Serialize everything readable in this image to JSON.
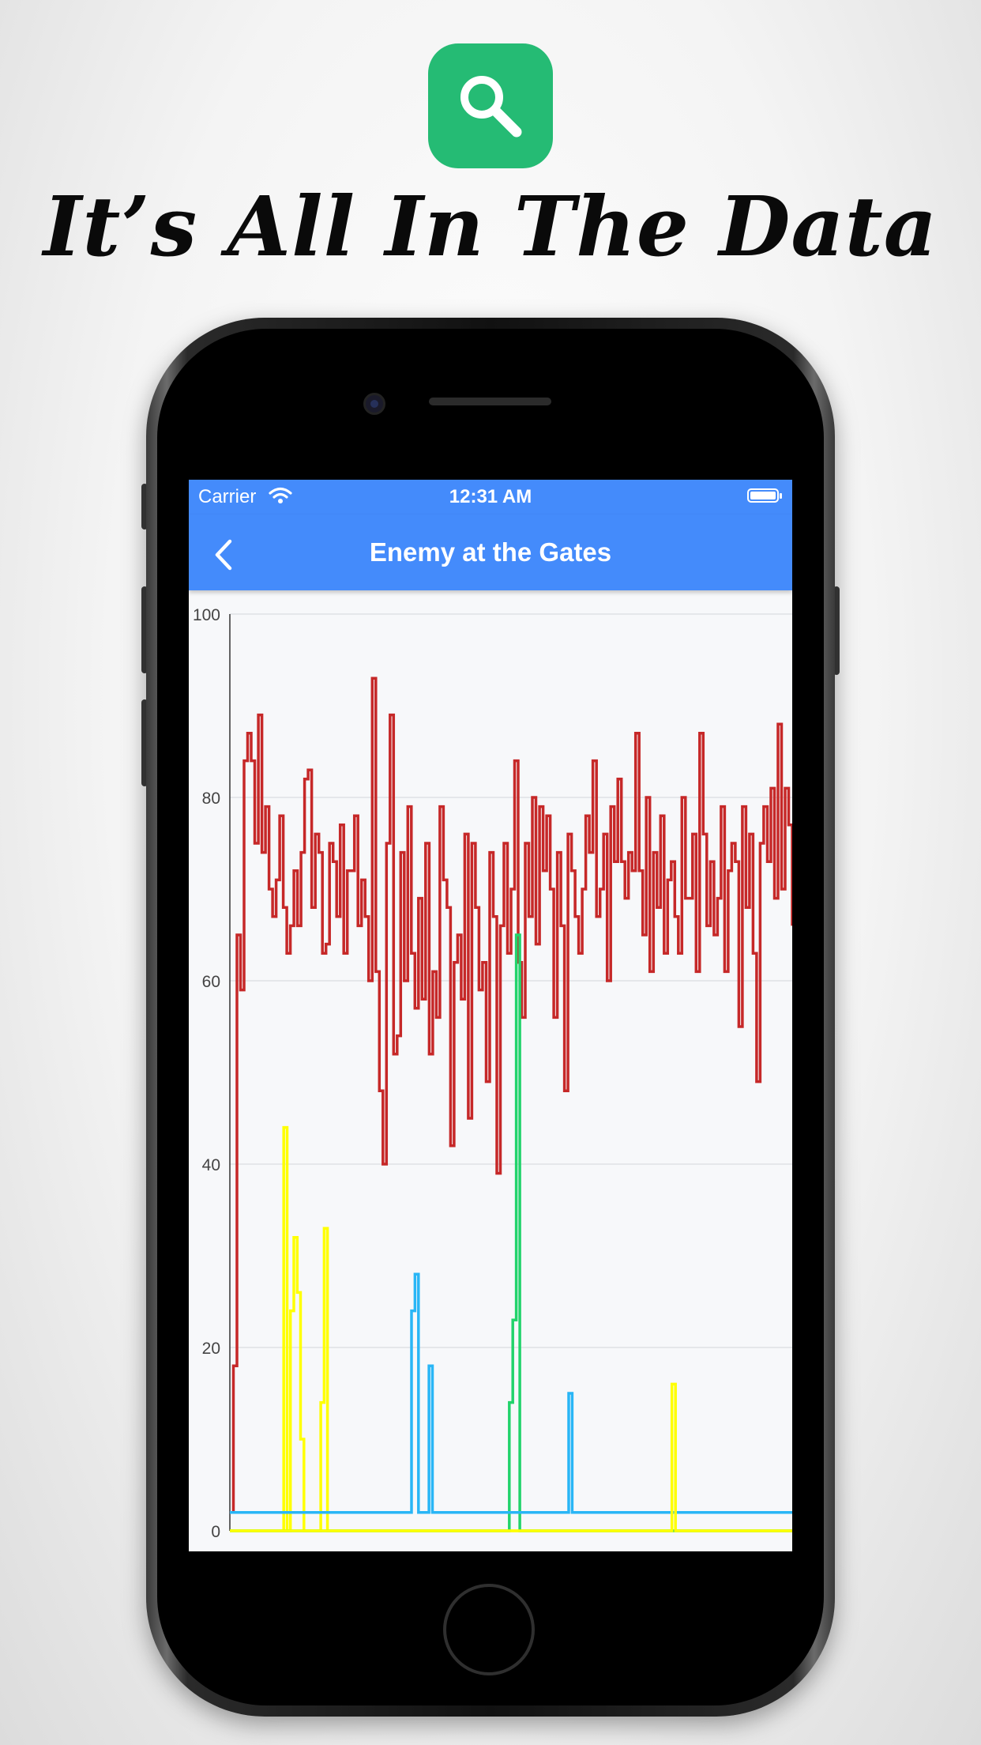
{
  "headline": "It’s All In The Data",
  "status_bar": {
    "carrier": "Carrier",
    "time": "12:31 AM"
  },
  "nav": {
    "title": "Enemy at the Gates"
  },
  "icons": {
    "app": "search-icon",
    "back": "chevron-left-icon",
    "wifi": "wifi-icon",
    "battery": "battery-icon"
  },
  "colors": {
    "app_icon": "#25bb74",
    "nav": "#448bfb",
    "red": "#c62828",
    "yellow": "#ffff00",
    "green": "#22d36b",
    "blue": "#29b6f6"
  },
  "chart_data": {
    "type": "line",
    "title": "",
    "xlabel": "",
    "ylabel": "",
    "ylim": [
      0,
      100
    ],
    "yticks": [
      "0",
      "20",
      "40",
      "60",
      "80",
      "100"
    ],
    "grid": true,
    "series": [
      {
        "color": "#c62828",
        "values": [
          2,
          18,
          65,
          59,
          84,
          87,
          84,
          75,
          89,
          74,
          79,
          70,
          67,
          71,
          78,
          68,
          63,
          66,
          72,
          66,
          74,
          82,
          83,
          68,
          76,
          74,
          63,
          64,
          75,
          73,
          67,
          77,
          63,
          72,
          72,
          78,
          66,
          71,
          67,
          60,
          93,
          61,
          48,
          40,
          75,
          89,
          52,
          54,
          74,
          60,
          79,
          63,
          57,
          69,
          58,
          75,
          52,
          61,
          56,
          79,
          71,
          68,
          42,
          62,
          65,
          58,
          76,
          45,
          75,
          68,
          59,
          62,
          49,
          74,
          67,
          39,
          66,
          75,
          63,
          70,
          84,
          62,
          56,
          75,
          67,
          80,
          64,
          79,
          72,
          78,
          70,
          56,
          74,
          66,
          48,
          76,
          72,
          67,
          63,
          70,
          78,
          74,
          84,
          67,
          70,
          76,
          60,
          79,
          73,
          82,
          73,
          69,
          74,
          72,
          87,
          72,
          65,
          80,
          61,
          74,
          68,
          78,
          63,
          71,
          73,
          67,
          63,
          80,
          69,
          69,
          76,
          61,
          87,
          76,
          66,
          73,
          65,
          69,
          79,
          61,
          72,
          75,
          73,
          55,
          79,
          68,
          76,
          63,
          49,
          75,
          79,
          73,
          81,
          69,
          88,
          70,
          81,
          77,
          66
        ]
      },
      {
        "color": "#ffff00",
        "values": [
          0,
          0,
          0,
          0,
          0,
          0,
          0,
          0,
          0,
          0,
          0,
          0,
          0,
          0,
          0,
          0,
          44,
          0,
          24,
          32,
          26,
          10,
          0,
          0,
          0,
          0,
          0,
          14,
          33,
          0,
          0,
          0,
          0,
          0,
          0,
          0,
          0,
          0,
          0,
          0,
          0,
          0,
          0,
          0,
          0,
          0,
          0,
          0,
          0,
          0,
          0,
          0,
          0,
          0,
          0,
          0,
          0,
          0,
          0,
          0,
          0,
          0,
          0,
          0,
          0,
          0,
          0,
          0,
          0,
          0,
          0,
          0,
          0,
          0,
          0,
          0,
          0,
          0,
          0,
          0,
          0,
          0,
          0,
          0,
          0,
          0,
          0,
          0,
          0,
          0,
          0,
          0,
          0,
          0,
          0,
          0,
          0,
          0,
          0,
          0,
          0,
          0,
          0,
          0,
          0,
          0,
          0,
          0,
          0,
          0,
          0,
          0,
          0,
          0,
          0,
          0,
          0,
          0,
          0,
          0,
          0,
          0,
          0,
          0,
          0,
          0,
          0,
          0,
          0,
          0,
          0,
          0,
          0,
          0,
          0,
          0,
          0,
          0,
          0,
          0,
          0,
          0,
          0,
          0,
          0,
          0,
          0,
          0,
          0,
          0,
          0,
          0,
          0,
          0,
          0,
          0,
          0,
          0,
          0,
          0,
          0,
          0,
          0,
          0,
          0,
          0,
          0,
          0
        ]
      },
      {
        "color": "#22d36b",
        "values": [
          0,
          0,
          0,
          0,
          0,
          0,
          0,
          0,
          0,
          0,
          0,
          0,
          0,
          0,
          0,
          0,
          0,
          0,
          0,
          0,
          0,
          0,
          0,
          0,
          0,
          0,
          0,
          0,
          0,
          0,
          0,
          0,
          0,
          0,
          0,
          0,
          0,
          0,
          0,
          0,
          0,
          0,
          0,
          0,
          0,
          0,
          0,
          0,
          0,
          0,
          0,
          0,
          0,
          0,
          0,
          0,
          0,
          0,
          0,
          0,
          0,
          0,
          0,
          0,
          0,
          0,
          0,
          0,
          0,
          0,
          0,
          0,
          0,
          0,
          0,
          0,
          0,
          0,
          0,
          0,
          14,
          23,
          65,
          0,
          0,
          0,
          0,
          0,
          0,
          0,
          0,
          0,
          0,
          0,
          0,
          0,
          0,
          0,
          0,
          0,
          0,
          0,
          0,
          0,
          0,
          0,
          0,
          0,
          0,
          0,
          0,
          0,
          0,
          0,
          0,
          0,
          0,
          0,
          0,
          0,
          0,
          0,
          0,
          0,
          0,
          0,
          0,
          0,
          0,
          0,
          0,
          0,
          0,
          0,
          0,
          0,
          0,
          0,
          0,
          0,
          0,
          0,
          0,
          0,
          0,
          0,
          0,
          0,
          0,
          0,
          0,
          0,
          0,
          0,
          0,
          0,
          0,
          0,
          0,
          0,
          0,
          0
        ]
      },
      {
        "color": "#29b6f6",
        "values": [
          2,
          2,
          2,
          2,
          2,
          2,
          2,
          2,
          2,
          2,
          2,
          2,
          2,
          2,
          2,
          2,
          2,
          2,
          2,
          2,
          2,
          2,
          2,
          2,
          2,
          2,
          2,
          2,
          2,
          2,
          2,
          2,
          2,
          2,
          2,
          2,
          2,
          2,
          2,
          2,
          2,
          2,
          2,
          2,
          2,
          2,
          2,
          2,
          2,
          2,
          2,
          2,
          24,
          28,
          2,
          2,
          2,
          18,
          2,
          2,
          2,
          2,
          2,
          2,
          2,
          2,
          2,
          2,
          2,
          2,
          2,
          2,
          2,
          2,
          2,
          2,
          2,
          2,
          2,
          2,
          2,
          2,
          2,
          2,
          2,
          2,
          2,
          2,
          2,
          2,
          2,
          2,
          2,
          2,
          2,
          2,
          2,
          15,
          2,
          2,
          2,
          2,
          2,
          2,
          2,
          2,
          2,
          2,
          2,
          2,
          2,
          2,
          2,
          2,
          2,
          2,
          2,
          2,
          2,
          2,
          2,
          2,
          2,
          2,
          2,
          2,
          2,
          2,
          2,
          2,
          2,
          2,
          2,
          2,
          2,
          2,
          2,
          2,
          2,
          2,
          2,
          2,
          2,
          2,
          2,
          2,
          2,
          2,
          2,
          2,
          2,
          2,
          2,
          2,
          2,
          2,
          2,
          2,
          2,
          2,
          2,
          2
        ]
      },
      {
        "color": "#ffff00",
        "values": [
          0,
          0,
          0,
          0,
          0,
          0,
          0,
          0,
          0,
          0,
          0,
          0,
          0,
          0,
          0,
          0,
          0,
          0,
          0,
          0,
          0,
          0,
          0,
          0,
          0,
          0,
          0,
          0,
          0,
          0,
          0,
          0,
          0,
          0,
          0,
          0,
          0,
          0,
          0,
          0,
          0,
          0,
          0,
          0,
          0,
          0,
          0,
          0,
          0,
          0,
          0,
          0,
          0,
          0,
          0,
          0,
          0,
          0,
          0,
          0,
          0,
          0,
          0,
          0,
          0,
          0,
          0,
          0,
          0,
          0,
          0,
          0,
          0,
          0,
          0,
          0,
          0,
          0,
          0,
          0,
          0,
          0,
          0,
          0,
          0,
          0,
          0,
          0,
          0,
          0,
          0,
          0,
          0,
          0,
          0,
          0,
          0,
          0,
          0,
          0,
          0,
          0,
          0,
          0,
          0,
          0,
          0,
          0,
          0,
          0,
          0,
          0,
          0,
          0,
          0,
          0,
          0,
          0,
          0,
          0,
          0,
          0,
          0,
          0,
          0,
          16,
          0,
          0,
          0,
          0,
          0,
          0,
          0,
          0,
          0,
          0,
          0,
          0,
          0,
          0,
          0,
          0,
          0,
          0,
          0,
          0,
          0,
          0,
          0,
          0,
          0,
          0,
          0,
          0,
          0,
          0,
          0,
          0,
          0,
          0
        ]
      }
    ]
  }
}
